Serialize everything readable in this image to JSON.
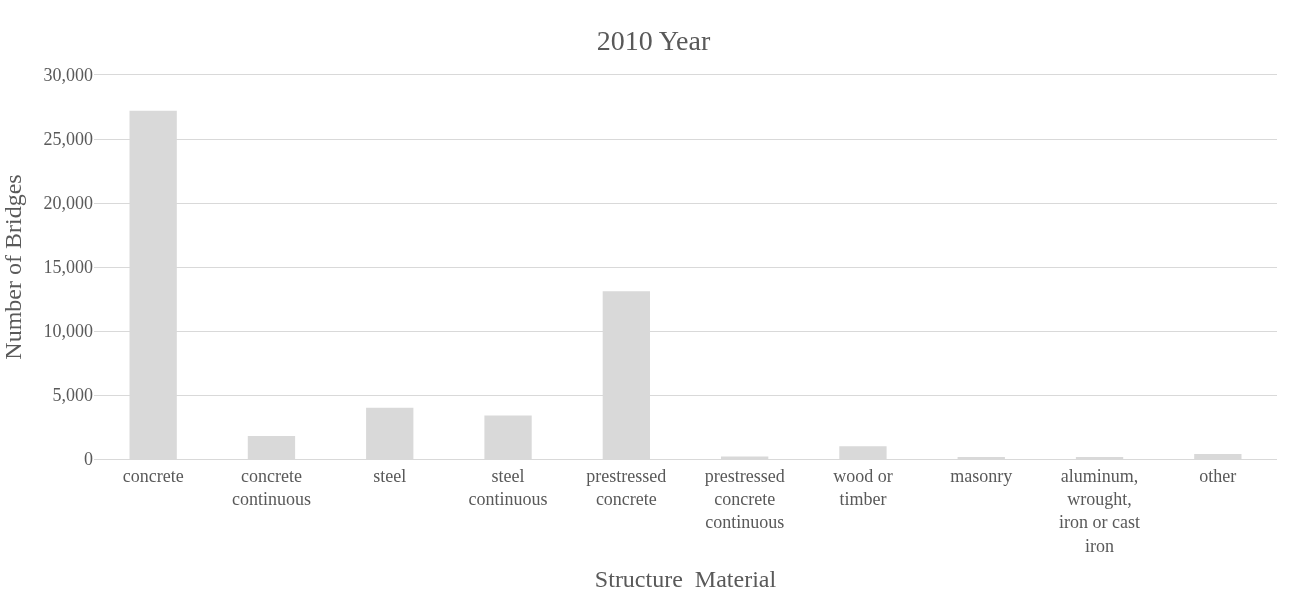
{
  "chart_data": {
    "type": "bar",
    "title": "2010 Year",
    "xlabel": "Structure  Material",
    "ylabel": "Number of Bridges",
    "categories": [
      "concrete",
      "concrete continuous",
      "steel",
      "steel continuous",
      "prestressed concrete",
      "prestressed concrete continuous",
      "wood or timber",
      "masonry",
      "aluminum, wrought, iron or cast iron",
      "other"
    ],
    "values": [
      27200,
      1800,
      4000,
      3400,
      13100,
      200,
      1000,
      150,
      150,
      400
    ],
    "color": "#d9d9d9",
    "ylim": [
      0,
      30000
    ],
    "yticks": [
      {
        "value": 0,
        "label": "0"
      },
      {
        "value": 5000,
        "label": "5,000"
      },
      {
        "value": 10000,
        "label": "10,000"
      },
      {
        "value": 15000,
        "label": "15,000"
      },
      {
        "value": 20000,
        "label": "20,000"
      },
      {
        "value": 25000,
        "label": "25,000"
      },
      {
        "value": 30000,
        "label": "30,000"
      }
    ],
    "grid": "y"
  }
}
